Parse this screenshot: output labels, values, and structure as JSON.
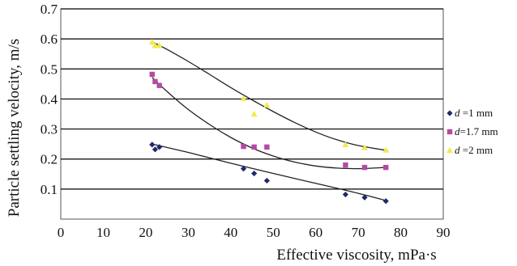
{
  "chart_data": {
    "type": "scatter",
    "title": "",
    "xlabel": "Effective viscosity, mPa·s",
    "ylabel": "Particle settling velocity, m/s",
    "xlim": [
      0,
      90
    ],
    "ylim": [
      0,
      0.7
    ],
    "x_ticks": [
      "0",
      "10",
      "20",
      "30",
      "40",
      "50",
      "60",
      "70",
      "80",
      "90"
    ],
    "y_ticks": [
      "0.1",
      "0.2",
      "0.3",
      "0.4",
      "0.5",
      "0.6",
      "0.7"
    ],
    "grid": "horizontal",
    "legend_position": "right",
    "series": [
      {
        "legend_var": "d",
        "legend_rest": " =1 mm",
        "marker": "diamond",
        "color": "#1f2a6b",
        "points": [
          [
            21.5,
            0.248
          ],
          [
            22.2,
            0.232
          ],
          [
            23.2,
            0.24
          ],
          [
            43.0,
            0.168
          ],
          [
            45.5,
            0.152
          ],
          [
            48.5,
            0.128
          ],
          [
            67.0,
            0.082
          ],
          [
            71.5,
            0.072
          ],
          [
            76.5,
            0.06
          ]
        ],
        "trend": [
          [
            21.5,
            0.25
          ],
          [
            30,
            0.222
          ],
          [
            40,
            0.186
          ],
          [
            50,
            0.152
          ],
          [
            60,
            0.119
          ],
          [
            70,
            0.086
          ],
          [
            77,
            0.06
          ]
        ]
      },
      {
        "legend_var": "d",
        "legend_rest": "=1.7 mm",
        "marker": "square",
        "color": "#b34aa3",
        "points": [
          [
            21.5,
            0.482
          ],
          [
            22.2,
            0.458
          ],
          [
            23.2,
            0.445
          ],
          [
            43.0,
            0.242
          ],
          [
            45.5,
            0.24
          ],
          [
            48.5,
            0.24
          ],
          [
            67.0,
            0.18
          ],
          [
            71.5,
            0.172
          ],
          [
            76.5,
            0.172
          ]
        ],
        "trend": [
          [
            21.5,
            0.472
          ],
          [
            25,
            0.425
          ],
          [
            30,
            0.365
          ],
          [
            35,
            0.315
          ],
          [
            40,
            0.272
          ],
          [
            45,
            0.237
          ],
          [
            50,
            0.21
          ],
          [
            55,
            0.19
          ],
          [
            60,
            0.177
          ],
          [
            65,
            0.17
          ],
          [
            70,
            0.168
          ],
          [
            75,
            0.171
          ],
          [
            77,
            0.173
          ]
        ]
      },
      {
        "legend_var": "d",
        "legend_rest": " =2 mm",
        "marker": "triangle",
        "color": "#f2e94e",
        "points": [
          [
            21.5,
            0.59
          ],
          [
            22.2,
            0.578
          ],
          [
            23.2,
            0.578
          ],
          [
            43.0,
            0.402
          ],
          [
            45.5,
            0.35
          ],
          [
            48.5,
            0.38
          ],
          [
            67.0,
            0.248
          ],
          [
            71.5,
            0.238
          ],
          [
            76.5,
            0.23
          ]
        ],
        "trend": [
          [
            21.5,
            0.59
          ],
          [
            25,
            0.565
          ],
          [
            30,
            0.525
          ],
          [
            35,
            0.482
          ],
          [
            40,
            0.438
          ],
          [
            45,
            0.397
          ],
          [
            50,
            0.358
          ],
          [
            55,
            0.322
          ],
          [
            60,
            0.29
          ],
          [
            65,
            0.264
          ],
          [
            70,
            0.245
          ],
          [
            77,
            0.228
          ]
        ]
      }
    ]
  }
}
